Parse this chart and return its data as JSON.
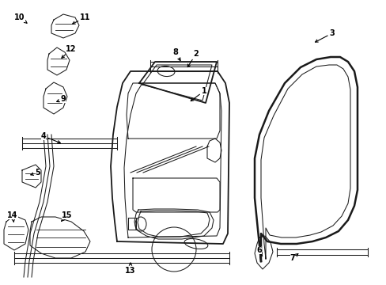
{
  "bg_color": "#ffffff",
  "line_color": "#1a1a1a",
  "figsize": [
    4.89,
    3.6
  ],
  "dpi": 100,
  "lw_main": 1.3,
  "lw_thin": 0.75,
  "lw_thick": 1.8,
  "fs_label": 7.0
}
